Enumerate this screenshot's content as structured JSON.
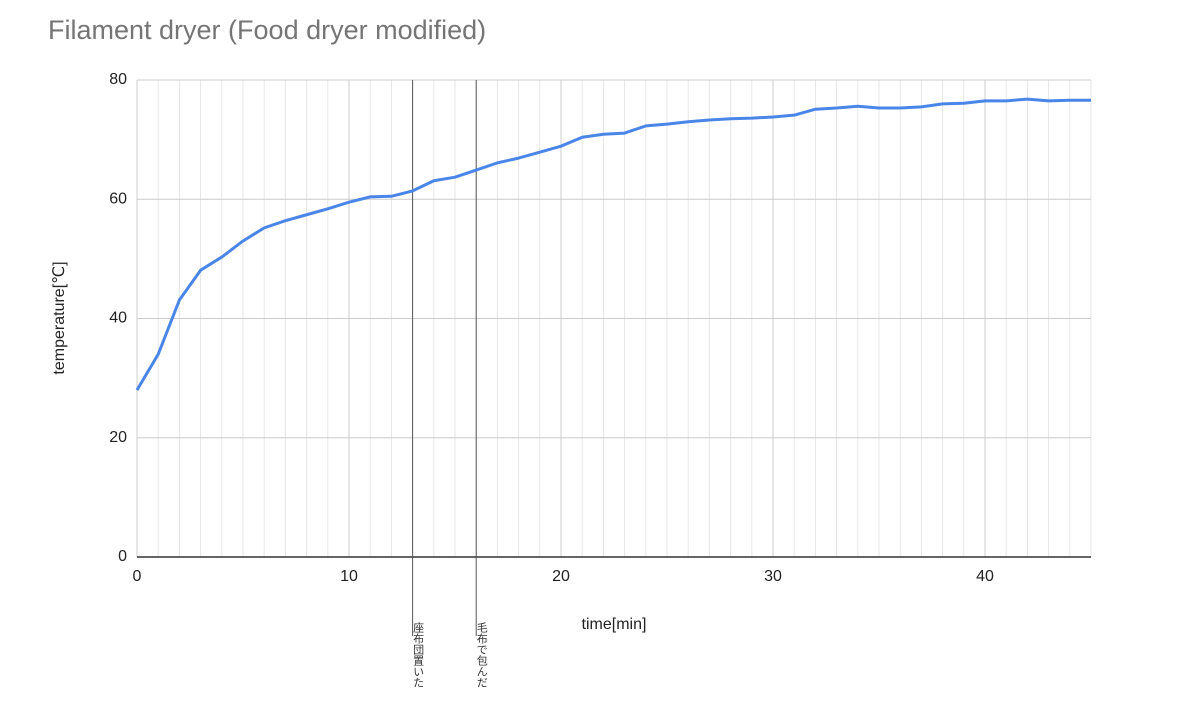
{
  "chart_data": {
    "type": "line",
    "title": "Filament dryer (Food dryer modified)",
    "x_label": "time[min]",
    "y_label": "temperature[℃]",
    "x": [
      0,
      1,
      2,
      3,
      4,
      5,
      6,
      7,
      8,
      9,
      10,
      11,
      12,
      13,
      14,
      15,
      16,
      17,
      18,
      19,
      20,
      21,
      22,
      23,
      24,
      25,
      26,
      27,
      28,
      29,
      30,
      31,
      32,
      33,
      34,
      35,
      36,
      37,
      38,
      39,
      40,
      41,
      42,
      43,
      44,
      45
    ],
    "values": [
      28.0,
      34.0,
      43.1,
      48.1,
      50.3,
      53.0,
      55.2,
      56.4,
      57.4,
      58.4,
      59.5,
      60.4,
      60.5,
      61.4,
      63.1,
      63.7,
      64.9,
      66.1,
      66.9,
      67.9,
      68.9,
      70.4,
      70.9,
      71.1,
      72.3,
      72.6,
      73.0,
      73.3,
      73.5,
      73.6,
      73.8,
      74.1,
      75.1,
      75.3,
      75.6,
      75.3,
      75.3,
      75.5,
      76.0,
      76.1,
      76.5,
      76.5,
      76.8,
      76.5,
      76.6,
      76.6
    ],
    "color": "#4a86e8",
    "xlim": [
      0,
      45
    ],
    "xticks": [
      0,
      10,
      20,
      30,
      40
    ],
    "x_minor_step": 1,
    "ylim": [
      0,
      80
    ],
    "yticks": [
      0,
      20,
      40,
      60,
      80
    ],
    "grid": true,
    "annotations": [
      {
        "x": 13,
        "text": "座布団置いた"
      },
      {
        "x": 16,
        "text": "毛布で包んだ"
      }
    ]
  }
}
